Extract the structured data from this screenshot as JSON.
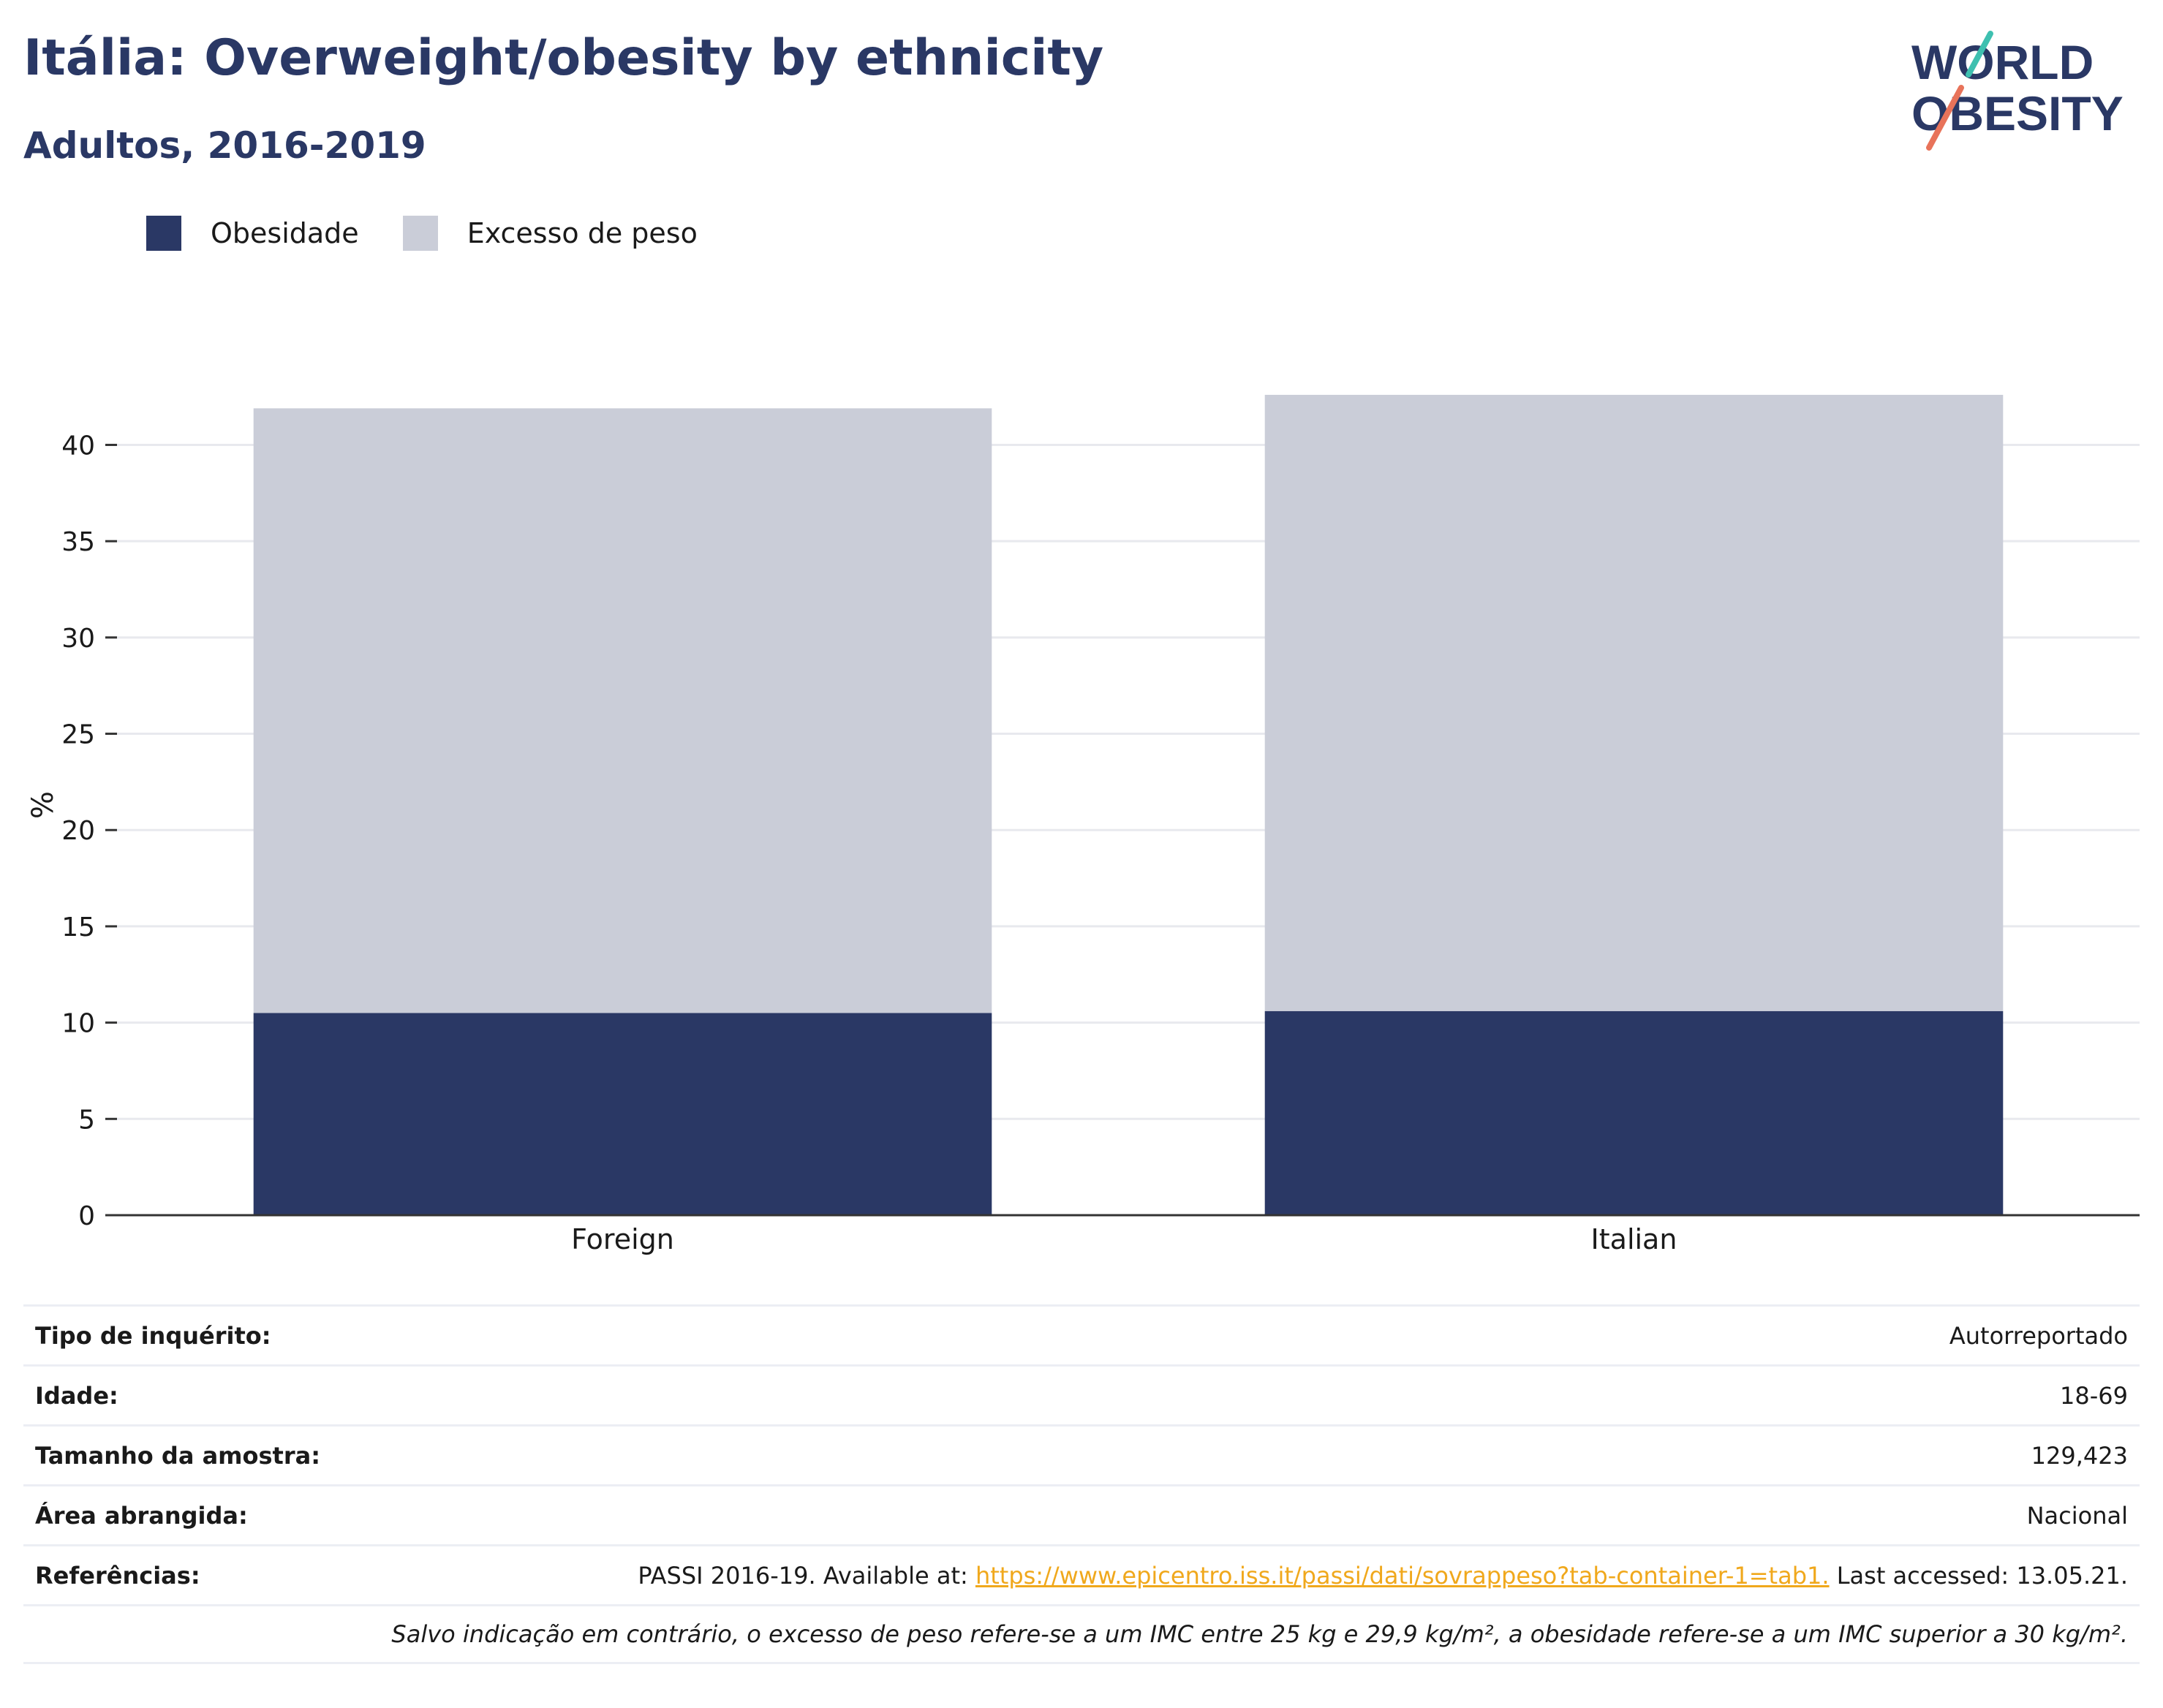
{
  "header": {
    "title": "Itália: Overweight/obesity by ethnicity",
    "subtitle": "Adultos, 2016-2019"
  },
  "logo": {
    "line1": "WORLD",
    "line2": "OBESITY"
  },
  "colors": {
    "obesity": "#2a3865",
    "overweight": "#cacdd8",
    "title": "#2a3865",
    "link": "#f0a81c"
  },
  "chart_data": {
    "type": "bar",
    "stacked": true,
    "categories": [
      "Foreign",
      "Italian"
    ],
    "series": [
      {
        "name": "Obesidade",
        "values": [
          10.5,
          10.6
        ]
      },
      {
        "name": "Excesso de peso",
        "values": [
          31.4,
          32.0
        ]
      }
    ],
    "ylabel": "%",
    "ylim": [
      0,
      42.6
    ],
    "yticks": [
      0,
      5,
      10,
      15,
      20,
      25,
      30,
      35,
      40
    ],
    "grid": true,
    "legend": "top-left"
  },
  "info": {
    "rows": [
      {
        "key": "Tipo de inquérito:",
        "value": "Autorreportado"
      },
      {
        "key": "Idade:",
        "value": "18-69"
      },
      {
        "key": "Tamanho da amostra:",
        "value": "129,423"
      },
      {
        "key": "Área abrangida:",
        "value": "Nacional"
      }
    ],
    "references_key": "Referências:",
    "references_prefix": "PASSI 2016-19. Available at: ",
    "references_link": "https://www.epicentro.iss.it/passi/dati/sovrappeso?tab-container-1=tab1.",
    "references_suffix": " Last accessed: 13.05.21.",
    "note": "Salvo indicação em contrário, o excesso de peso refere-se a um IMC entre 25 kg e 29,9 kg/m², a obesidade refere-se a um IMC superior a 30 kg/m²."
  }
}
